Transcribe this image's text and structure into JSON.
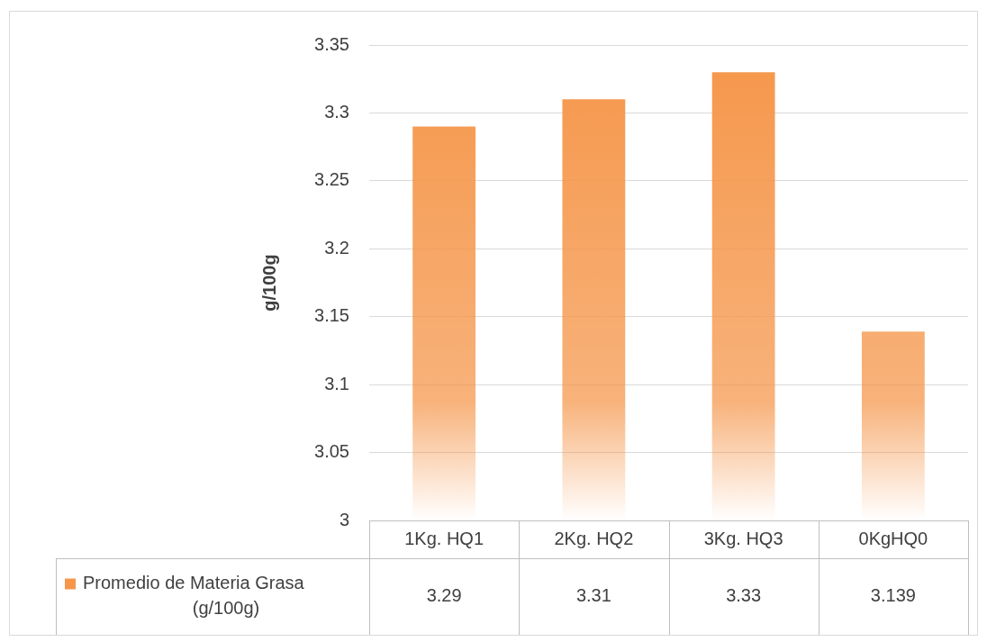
{
  "chart_data": {
    "type": "bar",
    "ylabel": "g/100g",
    "categories": [
      "1Kg. HQ1",
      "2Kg. HQ2",
      "3Kg. HQ3",
      "0KgHQ0"
    ],
    "series": [
      {
        "name": "Promedio de Materia Grasa (g/100g)",
        "color": "#f5964a",
        "values": [
          3.29,
          3.31,
          3.33,
          3.139
        ]
      }
    ],
    "ylim": [
      3,
      3.35
    ],
    "yticks": [
      3,
      3.05,
      3.1,
      3.15,
      3.2,
      3.25,
      3.3,
      3.35
    ],
    "grid": "y",
    "legend": "bottom",
    "data_labels": true
  }
}
